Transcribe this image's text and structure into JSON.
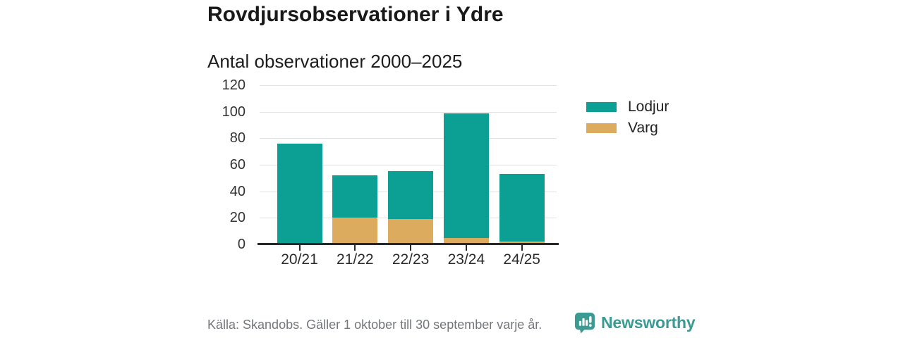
{
  "header": {
    "title": "Rovdjursobservationer i Ydre",
    "subtitle": "Antal observationer 2000–2025"
  },
  "chart_data": {
    "type": "bar",
    "stacked": true,
    "title": "Rovdjursobservationer i Ydre",
    "subtitle": "Antal observationer 2000–2025",
    "categories": [
      "20/21",
      "21/22",
      "22/23",
      "23/24",
      "24/25"
    ],
    "series": [
      {
        "name": "Lodjur",
        "color": "#0ca094",
        "values": [
          76,
          32,
          36,
          94,
          51
        ]
      },
      {
        "name": "Varg",
        "color": "#dcab5e",
        "values": [
          0,
          20,
          19,
          5,
          2
        ]
      }
    ],
    "stack_order_bottom_to_top": [
      "Varg",
      "Lodjur"
    ],
    "totals": [
      76,
      52,
      55,
      99,
      53
    ],
    "xlabel": "",
    "ylabel": "",
    "ylim": [
      0,
      120
    ],
    "yticks": [
      0,
      20,
      40,
      60,
      80,
      100,
      120
    ],
    "grid": true,
    "legend_position": "right"
  },
  "legend": {
    "items": [
      {
        "label": "Lodjur",
        "color": "#0ca094"
      },
      {
        "label": "Varg",
        "color": "#dcab5e"
      }
    ]
  },
  "footer": {
    "source": "Källa: Skandobs. Gäller 1 oktober till 30 september varje år.",
    "brand": "Newsworthy"
  },
  "colors": {
    "lodjur": "#0ca094",
    "varg": "#dcab5e",
    "brand_teal": "#3b9a92",
    "axis": "#26282b",
    "grid": "#e3e3e3",
    "text": "#191919",
    "muted_text": "#73767a"
  }
}
